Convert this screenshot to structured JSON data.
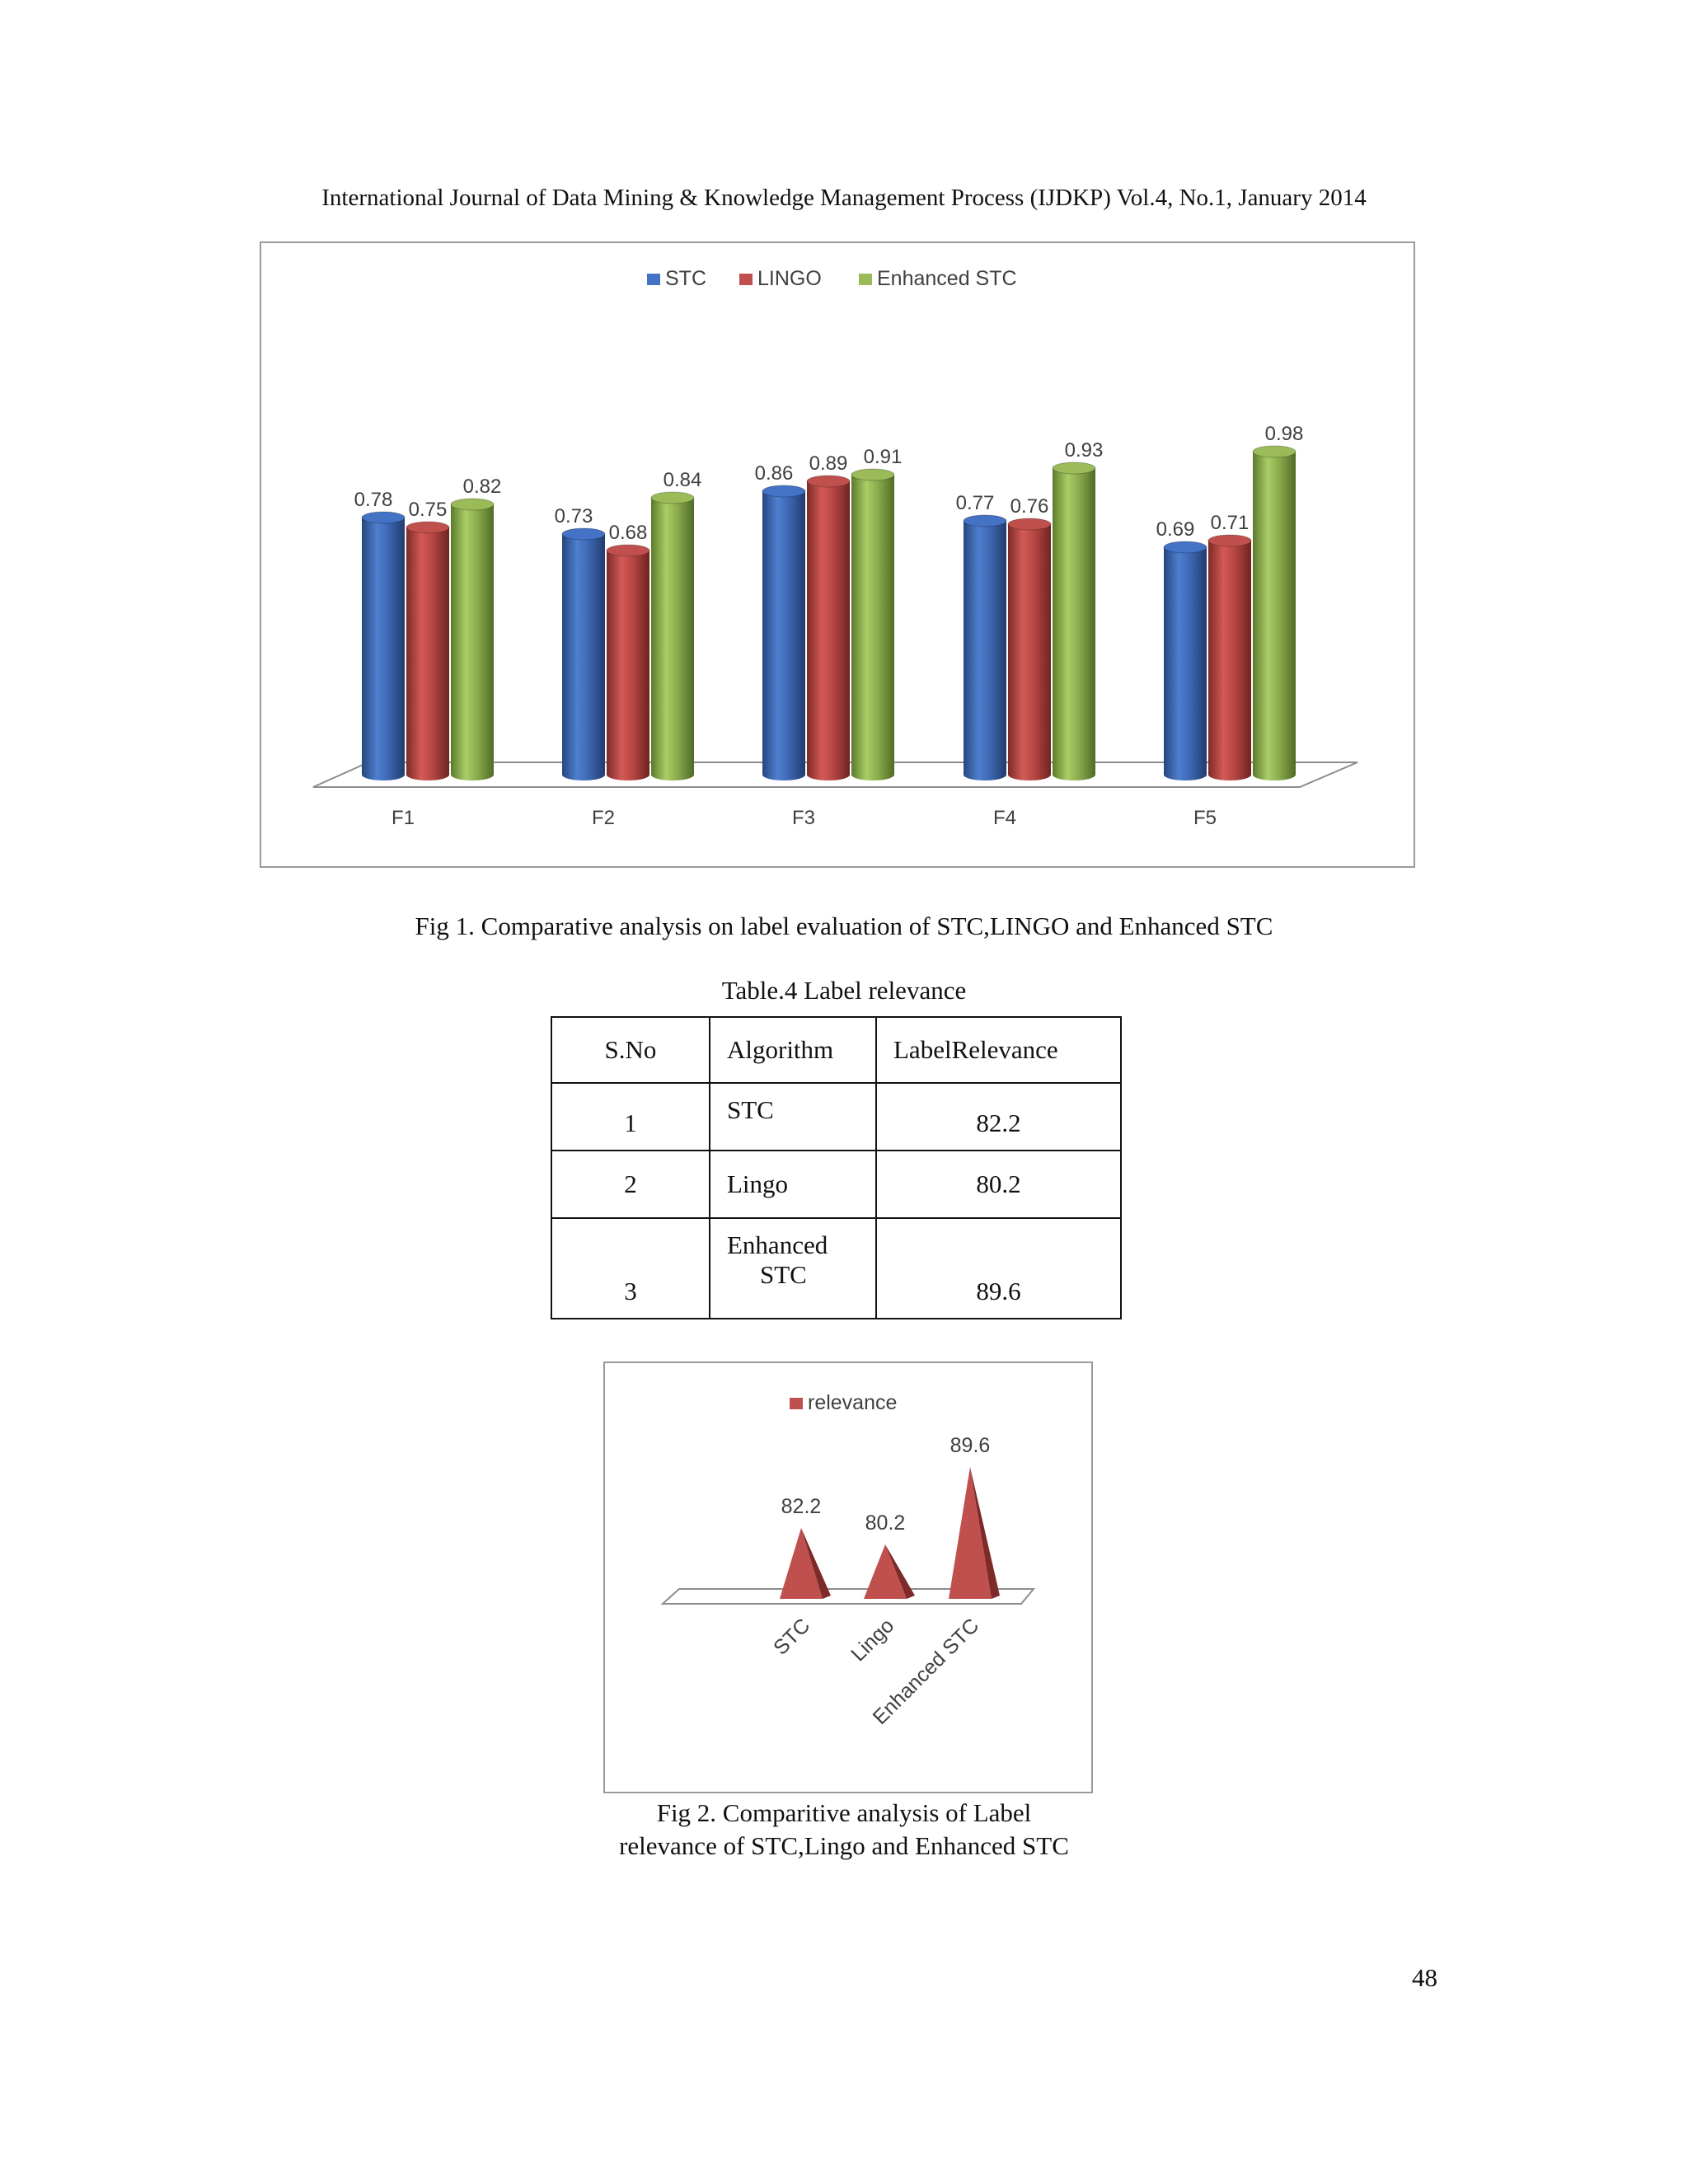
{
  "header": {
    "text": "International Journal of Data Mining & Knowledge Management Process (IJDKP) Vol.4, No.1, January 2014"
  },
  "colors": {
    "stc": "#4472c4",
    "lingo": "#c0504d",
    "enhanced": "#9bbb59"
  },
  "chart_data": [
    {
      "type": "bar",
      "title": "",
      "categories": [
        "F1",
        "F2",
        "F3",
        "F4",
        "F5"
      ],
      "series": [
        {
          "name": "STC",
          "values": [
            0.78,
            0.73,
            0.86,
            0.77,
            0.69
          ]
        },
        {
          "name": "LINGO",
          "values": [
            0.75,
            0.68,
            0.89,
            0.76,
            0.71
          ]
        },
        {
          "name": "Enhanced STC",
          "values": [
            0.82,
            0.84,
            0.91,
            0.93,
            0.98
          ]
        }
      ],
      "ylim": [
        0,
        1
      ],
      "legend": "top",
      "grid": false
    },
    {
      "type": "bar",
      "title": "",
      "categories": [
        "STC",
        "Lingo",
        "Enhanced STC"
      ],
      "series": [
        {
          "name": "relevance",
          "values": [
            82.2,
            80.2,
            89.6
          ]
        }
      ],
      "ylim": [
        78,
        92
      ],
      "legend": "top",
      "grid": false
    }
  ],
  "figures": {
    "fig1_caption": "Fig 1. Comparative analysis on label evaluation of STC,LINGO and Enhanced STC",
    "table_title": "Table.4 Label relevance",
    "fig2_caption_line1": "Fig 2. Comparitive analysis of Label",
    "fig2_caption_line2": "relevance of STC,Lingo and Enhanced STC"
  },
  "table": {
    "headers": [
      "S.No",
      "Algorithm",
      "LabelRelevance"
    ],
    "rows": [
      {
        "sno": "1",
        "alg": "STC",
        "rel": "82.2"
      },
      {
        "sno": "2",
        "alg": "Lingo",
        "rel": "80.2"
      },
      {
        "sno": "3",
        "alg_line1": "Enhanced",
        "alg_line2": "STC",
        "rel": "89.6"
      }
    ]
  },
  "page": {
    "number": "48"
  }
}
